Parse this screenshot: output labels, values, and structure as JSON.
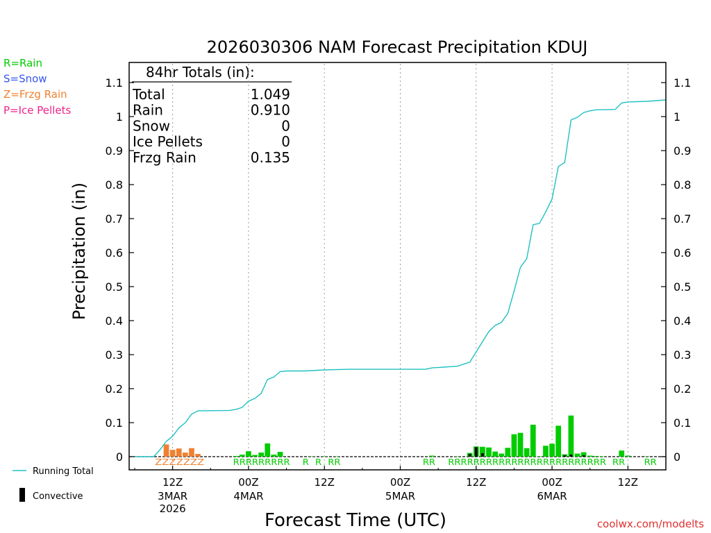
{
  "chart_data": {
    "type": "bar",
    "title": "2026030306 NAM Forecast Precipitation KDUJ",
    "xlabel": "Forecast Time (UTC)",
    "ylabel": "Precipitation (in)",
    "ylim": [
      0,
      1.15
    ],
    "y_ticks": [
      "0",
      "0.1",
      "0.2",
      "0.3",
      "0.4",
      "0.5",
      "0.6",
      "0.7",
      "0.8",
      "0.9",
      "1",
      "1.1"
    ],
    "x_range_hours": [
      0,
      84
    ],
    "x_ticks": [
      {
        "hour": 6,
        "label": "12Z",
        "sub": [
          "3MAR",
          "2026"
        ]
      },
      {
        "hour": 18,
        "label": "00Z",
        "sub": [
          "4MAR"
        ]
      },
      {
        "hour": 30,
        "label": "12Z",
        "sub": []
      },
      {
        "hour": 42,
        "label": "00Z",
        "sub": [
          "5MAR"
        ]
      },
      {
        "hour": 54,
        "label": "12Z",
        "sub": []
      },
      {
        "hour": 66,
        "label": "00Z",
        "sub": [
          "6MAR"
        ]
      },
      {
        "hour": 78,
        "label": "12Z",
        "sub": []
      }
    ],
    "colors": {
      "rain": "#00cc00",
      "snow": "#3355ee",
      "frzg_rain": "#f08030",
      "ice_pellets": "#ee2288",
      "running_total": "#20c0c0",
      "convective": "#000000"
    },
    "legend_types": [
      {
        "key": "rain",
        "label": "R=Rain"
      },
      {
        "key": "snow",
        "label": "S=Snow"
      },
      {
        "key": "frzg_rain",
        "label": "Z=Frzg Rain"
      },
      {
        "key": "ice_pellets",
        "label": "P=Ice Pellets"
      }
    ],
    "legend_lines": {
      "running_total": "Running Total",
      "convective": "Convective"
    },
    "totals": {
      "header": "84hr Totals (in):",
      "rows": [
        {
          "label": "Total",
          "value": "1.049"
        },
        {
          "label": "Rain",
          "value": "0.910"
        },
        {
          "label": "Snow",
          "value": "0"
        },
        {
          "label": "Ice Pellets",
          "value": "0"
        },
        {
          "label": "Frzg Rain",
          "value": "0.135"
        }
      ]
    },
    "bars": [
      {
        "hour": 5,
        "value": 0.036,
        "ptype": "frzg_rain"
      },
      {
        "hour": 6,
        "value": 0.02,
        "ptype": "frzg_rain"
      },
      {
        "hour": 7,
        "value": 0.024,
        "ptype": "frzg_rain"
      },
      {
        "hour": 8,
        "value": 0.012,
        "ptype": "frzg_rain"
      },
      {
        "hour": 9,
        "value": 0.025,
        "ptype": "frzg_rain"
      },
      {
        "hour": 10,
        "value": 0.008,
        "ptype": "frzg_rain"
      },
      {
        "hour": 16,
        "value": 0.002,
        "ptype": "rain"
      },
      {
        "hour": 17,
        "value": 0.006,
        "ptype": "rain"
      },
      {
        "hour": 18,
        "value": 0.016,
        "ptype": "rain"
      },
      {
        "hour": 19,
        "value": 0.005,
        "ptype": "rain"
      },
      {
        "hour": 20,
        "value": 0.012,
        "ptype": "rain"
      },
      {
        "hour": 21,
        "value": 0.039,
        "ptype": "rain"
      },
      {
        "hour": 22,
        "value": 0.006,
        "ptype": "rain"
      },
      {
        "hour": 23,
        "value": 0.014,
        "ptype": "rain"
      },
      {
        "hour": 28,
        "value": 0.001,
        "ptype": "rain"
      },
      {
        "hour": 30,
        "value": 0.001,
        "ptype": "rain"
      },
      {
        "hour": 32,
        "value": 0.001,
        "ptype": "rain"
      },
      {
        "hour": 47,
        "value": 0.003,
        "ptype": "rain"
      },
      {
        "hour": 51,
        "value": 0.001,
        "ptype": "rain"
      },
      {
        "hour": 53,
        "value": 0.011,
        "ptype": "rain",
        "convective": 0.008
      },
      {
        "hour": 54,
        "value": 0.03,
        "ptype": "rain",
        "convective": 0.028
      },
      {
        "hour": 55,
        "value": 0.029,
        "ptype": "rain",
        "convective": 0.01
      },
      {
        "hour": 56,
        "value": 0.027,
        "ptype": "rain"
      },
      {
        "hour": 57,
        "value": 0.015,
        "ptype": "rain"
      },
      {
        "hour": 58,
        "value": 0.009,
        "ptype": "rain"
      },
      {
        "hour": 59,
        "value": 0.026,
        "ptype": "rain"
      },
      {
        "hour": 60,
        "value": 0.066,
        "ptype": "rain"
      },
      {
        "hour": 61,
        "value": 0.07,
        "ptype": "rain"
      },
      {
        "hour": 62,
        "value": 0.025,
        "ptype": "rain"
      },
      {
        "hour": 63,
        "value": 0.094,
        "ptype": "rain"
      },
      {
        "hour": 64,
        "value": 0.001,
        "ptype": "rain"
      },
      {
        "hour": 65,
        "value": 0.032,
        "ptype": "rain"
      },
      {
        "hour": 66,
        "value": 0.038,
        "ptype": "rain"
      },
      {
        "hour": 67,
        "value": 0.091,
        "ptype": "rain"
      },
      {
        "hour": 68,
        "value": 0.007,
        "ptype": "rain",
        "convective": 0.004
      },
      {
        "hour": 69,
        "value": 0.121,
        "ptype": "rain",
        "convective": 0.006
      },
      {
        "hour": 70,
        "value": 0.009,
        "ptype": "rain"
      },
      {
        "hour": 71,
        "value": 0.013,
        "ptype": "rain",
        "convective": 0.004
      },
      {
        "hour": 72,
        "value": 0.003,
        "ptype": "rain"
      },
      {
        "hour": 73,
        "value": 0.002,
        "ptype": "rain"
      },
      {
        "hour": 74,
        "value": 0.001,
        "ptype": "rain"
      },
      {
        "hour": 77,
        "value": 0.018,
        "ptype": "rain"
      },
      {
        "hour": 78,
        "value": 0.003,
        "ptype": "rain"
      },
      {
        "hour": 81,
        "value": 0.001,
        "ptype": "rain"
      }
    ],
    "running_total": [
      {
        "hour": 0,
        "value": 0
      },
      {
        "hour": 3,
        "value": 0
      },
      {
        "hour": 4,
        "value": 0.02
      },
      {
        "hour": 5,
        "value": 0.045
      },
      {
        "hour": 6,
        "value": 0.06
      },
      {
        "hour": 7,
        "value": 0.085
      },
      {
        "hour": 8,
        "value": 0.1
      },
      {
        "hour": 9,
        "value": 0.125
      },
      {
        "hour": 10,
        "value": 0.135
      },
      {
        "hour": 15,
        "value": 0.136
      },
      {
        "hour": 16,
        "value": 0.139
      },
      {
        "hour": 17,
        "value": 0.145
      },
      {
        "hour": 18,
        "value": 0.163
      },
      {
        "hour": 19,
        "value": 0.171
      },
      {
        "hour": 20,
        "value": 0.186
      },
      {
        "hour": 21,
        "value": 0.227
      },
      {
        "hour": 22,
        "value": 0.234
      },
      {
        "hour": 23,
        "value": 0.25
      },
      {
        "hour": 24,
        "value": 0.252
      },
      {
        "hour": 27,
        "value": 0.252
      },
      {
        "hour": 30,
        "value": 0.255
      },
      {
        "hour": 34,
        "value": 0.257
      },
      {
        "hour": 46,
        "value": 0.257
      },
      {
        "hour": 47,
        "value": 0.261
      },
      {
        "hour": 51,
        "value": 0.266
      },
      {
        "hour": 53,
        "value": 0.278
      },
      {
        "hour": 54,
        "value": 0.308
      },
      {
        "hour": 55,
        "value": 0.338
      },
      {
        "hour": 56,
        "value": 0.368
      },
      {
        "hour": 57,
        "value": 0.386
      },
      {
        "hour": 58,
        "value": 0.395
      },
      {
        "hour": 59,
        "value": 0.421
      },
      {
        "hour": 60,
        "value": 0.487
      },
      {
        "hour": 61,
        "value": 0.557
      },
      {
        "hour": 62,
        "value": 0.582
      },
      {
        "hour": 63,
        "value": 0.682
      },
      {
        "hour": 64,
        "value": 0.686
      },
      {
        "hour": 65,
        "value": 0.72
      },
      {
        "hour": 66,
        "value": 0.758
      },
      {
        "hour": 67,
        "value": 0.853
      },
      {
        "hour": 68,
        "value": 0.865
      },
      {
        "hour": 69,
        "value": 0.99
      },
      {
        "hour": 70,
        "value": 0.998
      },
      {
        "hour": 71,
        "value": 1.012
      },
      {
        "hour": 72,
        "value": 1.017
      },
      {
        "hour": 73,
        "value": 1.02
      },
      {
        "hour": 76,
        "value": 1.021
      },
      {
        "hour": 77,
        "value": 1.04
      },
      {
        "hour": 78,
        "value": 1.043
      },
      {
        "hour": 81,
        "value": 1.045
      },
      {
        "hour": 84,
        "value": 1.049
      }
    ],
    "ptype_markers": {
      "frzg_rain_text": "ZZZZZZZ",
      "rain_groups": [
        {
          "hour": 16,
          "text": "RRRRRRRRR"
        },
        {
          "hour": 27,
          "text": "R"
        },
        {
          "hour": 29,
          "text": "R"
        },
        {
          "hour": 31,
          "text": "RR"
        },
        {
          "hour": 46,
          "text": "RR"
        },
        {
          "hour": 50,
          "text": "RRRRRRRRRRRRRRRRRRRRRRRRR"
        },
        {
          "hour": 76,
          "text": "RR"
        },
        {
          "hour": 81,
          "text": "RR"
        }
      ]
    },
    "credit": "coolwx.com/modelts"
  }
}
